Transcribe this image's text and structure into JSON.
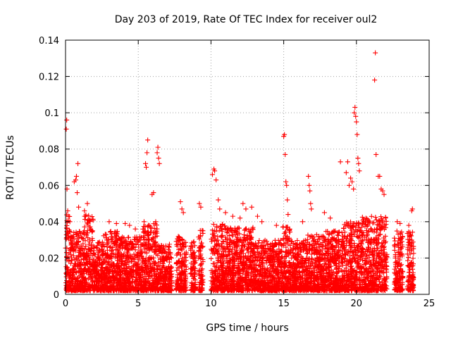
{
  "chart_data": {
    "type": "scatter",
    "title": "Day 203 of 2019, Rate Of TEC Index for receiver oul2",
    "xlabel": "GPS time / hours",
    "ylabel": "ROTI / TECUs",
    "xlim": [
      0,
      25
    ],
    "ylim": [
      0,
      0.14
    ],
    "x_ticks": [
      0,
      5,
      10,
      15,
      20,
      25
    ],
    "y_ticks": [
      0,
      0.02,
      0.04,
      0.06,
      0.08,
      0.1,
      0.12,
      0.14
    ],
    "x_tick_labels": [
      "0",
      "5",
      "10",
      "15",
      "20",
      "25"
    ],
    "y_tick_labels": [
      "0",
      "0.02",
      "0.04",
      "0.06",
      "0.08",
      "0.1",
      "0.12",
      "0.14"
    ],
    "grid": true,
    "marker": "plus",
    "color": "#ff0000",
    "series": [
      {
        "name": "",
        "points": [
          [
            0.05,
            0.091
          ],
          [
            0.08,
            0.096
          ],
          [
            0.1,
            0.058
          ],
          [
            0.15,
            0.046
          ],
          [
            0.2,
            0.043
          ],
          [
            0.3,
            0.04
          ],
          [
            0.6,
            0.062
          ],
          [
            0.7,
            0.063
          ],
          [
            0.75,
            0.065
          ],
          [
            0.8,
            0.056
          ],
          [
            0.85,
            0.072
          ],
          [
            0.9,
            0.048
          ],
          [
            1.3,
            0.046
          ],
          [
            1.5,
            0.05
          ],
          [
            1.6,
            0.041
          ],
          [
            1.7,
            0.036
          ],
          [
            3.0,
            0.04
          ],
          [
            3.5,
            0.039
          ],
          [
            4.1,
            0.039
          ],
          [
            4.4,
            0.038
          ],
          [
            4.8,
            0.036
          ],
          [
            5.4,
            0.04
          ],
          [
            5.5,
            0.072
          ],
          [
            5.55,
            0.07
          ],
          [
            5.6,
            0.078
          ],
          [
            5.65,
            0.085
          ],
          [
            5.7,
            0.038
          ],
          [
            5.95,
            0.055
          ],
          [
            6.05,
            0.056
          ],
          [
            6.2,
            0.04
          ],
          [
            6.3,
            0.078
          ],
          [
            6.35,
            0.081
          ],
          [
            6.4,
            0.075
          ],
          [
            6.45,
            0.072
          ],
          [
            7.9,
            0.051
          ],
          [
            8.0,
            0.047
          ],
          [
            8.1,
            0.045
          ],
          [
            9.2,
            0.05
          ],
          [
            9.3,
            0.048
          ],
          [
            10.1,
            0.066
          ],
          [
            10.2,
            0.069
          ],
          [
            10.25,
            0.068
          ],
          [
            10.35,
            0.063
          ],
          [
            10.5,
            0.052
          ],
          [
            10.6,
            0.047
          ],
          [
            11.0,
            0.045
          ],
          [
            11.5,
            0.043
          ],
          [
            12.0,
            0.042
          ],
          [
            12.2,
            0.05
          ],
          [
            12.4,
            0.047
          ],
          [
            12.8,
            0.048
          ],
          [
            13.2,
            0.043
          ],
          [
            13.5,
            0.04
          ],
          [
            14.5,
            0.038
          ],
          [
            15.0,
            0.087
          ],
          [
            15.05,
            0.088
          ],
          [
            15.1,
            0.077
          ],
          [
            15.15,
            0.062
          ],
          [
            15.2,
            0.06
          ],
          [
            15.25,
            0.052
          ],
          [
            15.3,
            0.044
          ],
          [
            16.3,
            0.04
          ],
          [
            16.7,
            0.065
          ],
          [
            16.75,
            0.06
          ],
          [
            16.8,
            0.057
          ],
          [
            16.85,
            0.05
          ],
          [
            16.9,
            0.047
          ],
          [
            17.8,
            0.045
          ],
          [
            18.2,
            0.042
          ],
          [
            18.9,
            0.073
          ],
          [
            19.3,
            0.067
          ],
          [
            19.4,
            0.073
          ],
          [
            19.5,
            0.06
          ],
          [
            19.6,
            0.064
          ],
          [
            19.7,
            0.062
          ],
          [
            19.8,
            0.058
          ],
          [
            19.85,
            0.1
          ],
          [
            19.9,
            0.103
          ],
          [
            19.95,
            0.098
          ],
          [
            20.0,
            0.095
          ],
          [
            20.05,
            0.088
          ],
          [
            20.1,
            0.075
          ],
          [
            20.15,
            0.072
          ],
          [
            20.2,
            0.068
          ],
          [
            21.25,
            0.118
          ],
          [
            21.3,
            0.133
          ],
          [
            21.35,
            0.077
          ],
          [
            21.5,
            0.065
          ],
          [
            21.6,
            0.065
          ],
          [
            21.7,
            0.058
          ],
          [
            21.8,
            0.057
          ],
          [
            21.9,
            0.055
          ],
          [
            22.0,
            0.042
          ],
          [
            22.8,
            0.04
          ],
          [
            23.0,
            0.039
          ],
          [
            23.6,
            0.038
          ],
          [
            23.8,
            0.046
          ],
          [
            23.85,
            0.047
          ]
        ],
        "density_bands": [
          {
            "x_from": 0.0,
            "x_to": 0.3,
            "y_max": 0.045
          },
          {
            "x_from": 0.3,
            "x_to": 1.3,
            "y_max": 0.035
          },
          {
            "x_from": 1.3,
            "x_to": 1.9,
            "y_max": 0.044
          },
          {
            "x_from": 1.9,
            "x_to": 2.6,
            "y_max": 0.029
          },
          {
            "x_from": 2.6,
            "x_to": 3.6,
            "y_max": 0.035
          },
          {
            "x_from": 3.6,
            "x_to": 5.3,
            "y_max": 0.032
          },
          {
            "x_from": 5.3,
            "x_to": 6.3,
            "y_max": 0.039
          },
          {
            "x_from": 6.3,
            "x_to": 7.3,
            "y_max": 0.028
          },
          {
            "x_from": 7.6,
            "x_to": 8.3,
            "y_max": 0.032
          },
          {
            "x_from": 8.6,
            "x_to": 8.95,
            "y_max": 0.03
          },
          {
            "x_from": 9.15,
            "x_to": 9.45,
            "y_max": 0.036
          },
          {
            "x_from": 10.0,
            "x_to": 11.0,
            "y_max": 0.039
          },
          {
            "x_from": 11.0,
            "x_to": 13.0,
            "y_max": 0.037
          },
          {
            "x_from": 13.0,
            "x_to": 14.9,
            "y_max": 0.03
          },
          {
            "x_from": 14.9,
            "x_to": 15.5,
            "y_max": 0.038
          },
          {
            "x_from": 15.5,
            "x_to": 16.6,
            "y_max": 0.03
          },
          {
            "x_from": 16.6,
            "x_to": 17.9,
            "y_max": 0.033
          },
          {
            "x_from": 17.9,
            "x_to": 19.0,
            "y_max": 0.035
          },
          {
            "x_from": 19.0,
            "x_to": 20.3,
            "y_max": 0.04
          },
          {
            "x_from": 20.3,
            "x_to": 22.1,
            "y_max": 0.043
          },
          {
            "x_from": 22.6,
            "x_to": 23.2,
            "y_max": 0.035
          },
          {
            "x_from": 23.5,
            "x_to": 23.95,
            "y_max": 0.035
          }
        ]
      }
    ]
  }
}
